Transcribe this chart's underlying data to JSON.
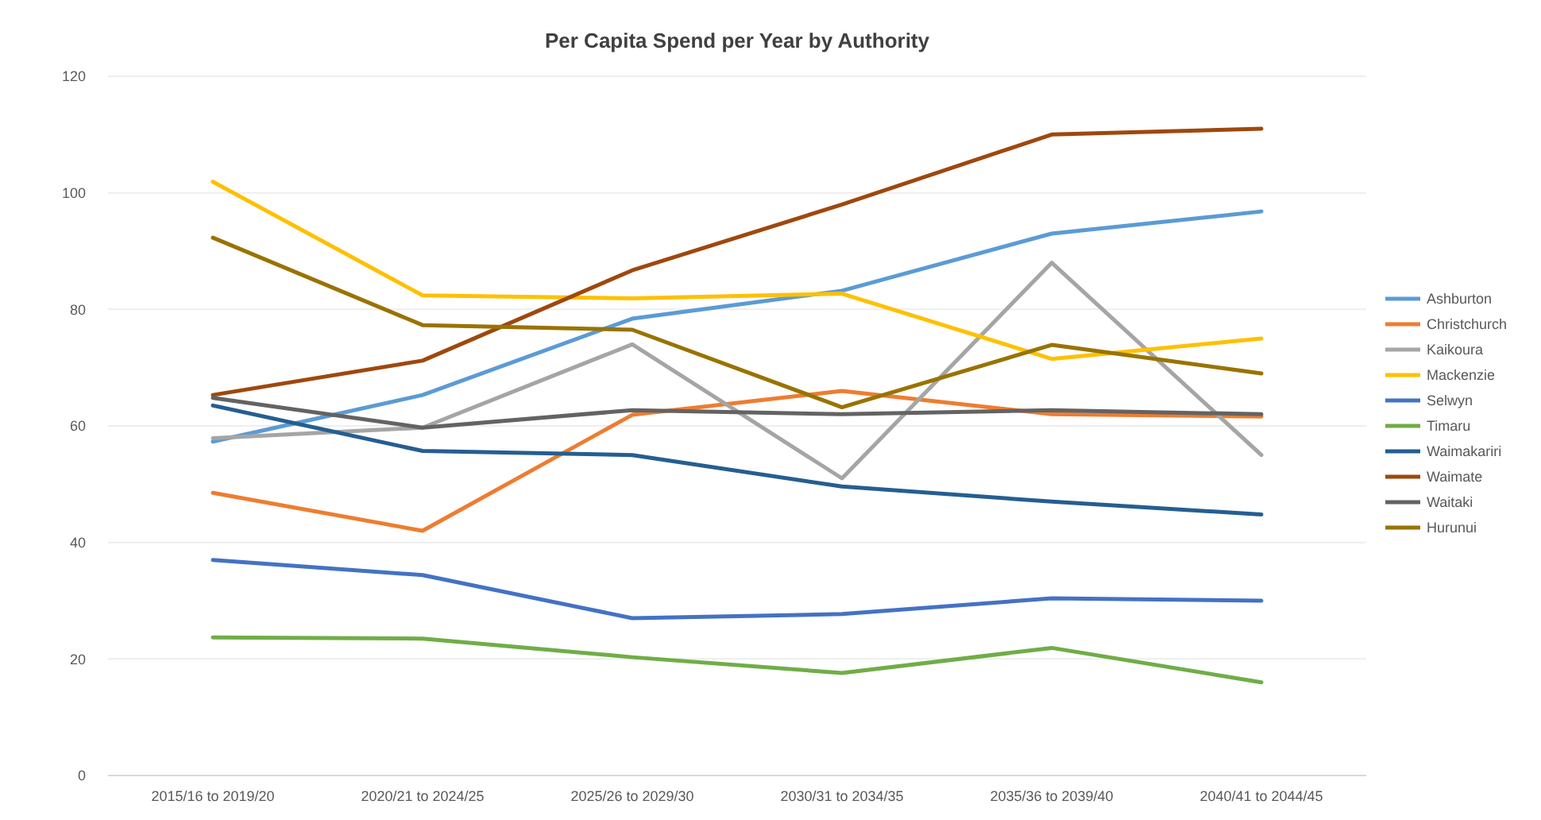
{
  "chart_data": {
    "type": "line",
    "title": "Per Capita Spend per Year by Authority",
    "categories": [
      "2015/16 to 2019/20",
      "2020/21 to 2024/25",
      "2025/26 to 2029/30",
      "2030/31 to 2034/35",
      "2035/36 to 2039/40",
      "2040/41 to 2044/45"
    ],
    "ylim": [
      0,
      120
    ],
    "yticks": [
      0,
      20,
      40,
      60,
      80,
      100,
      120
    ],
    "grid": "y",
    "legend": "right",
    "marker": "none",
    "line_style": "solid",
    "series": [
      {
        "name": "Ashburton",
        "color": "#5b9bd5",
        "values": [
          57.3,
          65.3,
          78.4,
          83.2,
          93,
          96.8
        ]
      },
      {
        "name": "Christchurch",
        "color": "#ed7d31",
        "values": [
          48.5,
          42,
          61.9,
          66,
          62,
          61.6
        ]
      },
      {
        "name": "Kaikoura",
        "color": "#a5a5a5",
        "values": [
          57.9,
          59.7,
          74,
          51,
          88,
          55
        ]
      },
      {
        "name": "Mackenzie",
        "color": "#ffc000",
        "values": [
          101.9,
          82.4,
          81.9,
          82.7,
          71.5,
          75
        ]
      },
      {
        "name": "Selwyn",
        "color": "#4472c4",
        "values": [
          37,
          34.4,
          27,
          27.7,
          30.4,
          30
        ]
      },
      {
        "name": "Timaru",
        "color": "#70ad47",
        "values": [
          23.7,
          23.5,
          20.3,
          17.6,
          21.9,
          16
        ]
      },
      {
        "name": "Waimakariri",
        "color": "#255e91",
        "values": [
          63.5,
          55.7,
          55,
          49.6,
          47,
          44.8
        ]
      },
      {
        "name": "Waimate",
        "color": "#9e480e",
        "values": [
          65.3,
          71.2,
          86.7,
          98,
          110,
          111
        ]
      },
      {
        "name": "Waitaki",
        "color": "#636363",
        "values": [
          64.8,
          59.7,
          62.7,
          62,
          62.7,
          62
        ]
      },
      {
        "name": "Hurunui",
        "color": "#997300",
        "values": [
          92.3,
          77.3,
          76.5,
          63.2,
          73.9,
          69
        ]
      }
    ]
  }
}
